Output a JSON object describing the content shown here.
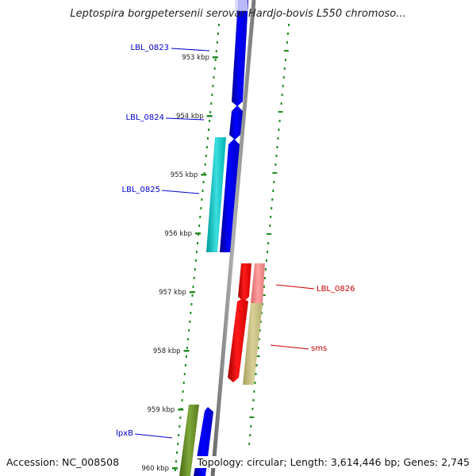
{
  "title": "Leptospira borgpetersenii serovar Hardjo-bovis L550 chromoso...",
  "footer": {
    "accession": "Accession: NC_008508",
    "topology": "Topology: circular; Length: 3,614,446 bp; Genes: 2,745"
  },
  "ticks": [
    {
      "label": "953 kbp",
      "kbp": 953
    },
    {
      "label": "954 kbp",
      "kbp": 954
    },
    {
      "label": "955 kbp",
      "kbp": 955
    },
    {
      "label": "956 kbp",
      "kbp": 956
    },
    {
      "label": "957 kbp",
      "kbp": 957
    },
    {
      "label": "958 kbp",
      "kbp": 958
    },
    {
      "label": "959 kbp",
      "kbp": 959
    },
    {
      "label": "960 kbp",
      "kbp": 960
    }
  ],
  "genes": [
    {
      "name": "LBL_0823",
      "strand": "forward",
      "start_kbp": 952.55,
      "end_kbp": 953.9,
      "color": "#0000ff"
    },
    {
      "name": "LBL_0824",
      "strand": "forward",
      "start_kbp": 953.9,
      "end_kbp": 954.45,
      "color": "#0000ff"
    },
    {
      "name": "LBL_0825",
      "strand": "forward",
      "start_kbp": 954.45,
      "end_kbp": 956.3,
      "color": "#0000ff"
    },
    {
      "name": "LBL_0825",
      "strand": "forward",
      "start_kbp": 954.45,
      "end_kbp": 956.3,
      "color": "#00c8c8"
    },
    {
      "name": "LBL_0826",
      "strand": "reverse",
      "start_kbp": 956.7,
      "end_kbp": 957.3,
      "color": "#ff0000"
    },
    {
      "name": "LBL_0826",
      "strand": "reverse",
      "start_kbp": 956.7,
      "end_kbp": 957.3,
      "color": "#f08080"
    },
    {
      "name": "sms",
      "strand": "reverse",
      "start_kbp": 957.3,
      "end_kbp": 958.7,
      "color": "#ff0000"
    },
    {
      "name": "sms",
      "strand": "reverse",
      "start_kbp": 957.3,
      "end_kbp": 958.7,
      "color": "#c8c080"
    },
    {
      "name": "lpxB",
      "strand": "forward",
      "start_kbp": 959.0,
      "end_kbp": 960.2,
      "color": "#0000ff"
    },
    {
      "name": "lpxB",
      "strand": "forward",
      "start_kbp": 959.0,
      "end_kbp": 960.2,
      "color": "#6b8e23"
    }
  ],
  "labels": [
    {
      "text": "LBL_0823",
      "color": "#0000cc"
    },
    {
      "text": "LBL_0824",
      "color": "#0000cc"
    },
    {
      "text": "LBL_0825",
      "color": "#0000cc"
    },
    {
      "text": "LBL_0826",
      "color": "#cc0000"
    },
    {
      "text": "sms",
      "color": "#cc0000"
    },
    {
      "text": "lpxB",
      "color": "#0000cc"
    }
  ],
  "colors": {
    "backbone": "#888888",
    "tick": "#228b22",
    "forward_gene": "#0000ff",
    "reverse_gene": "#ff0000"
  }
}
